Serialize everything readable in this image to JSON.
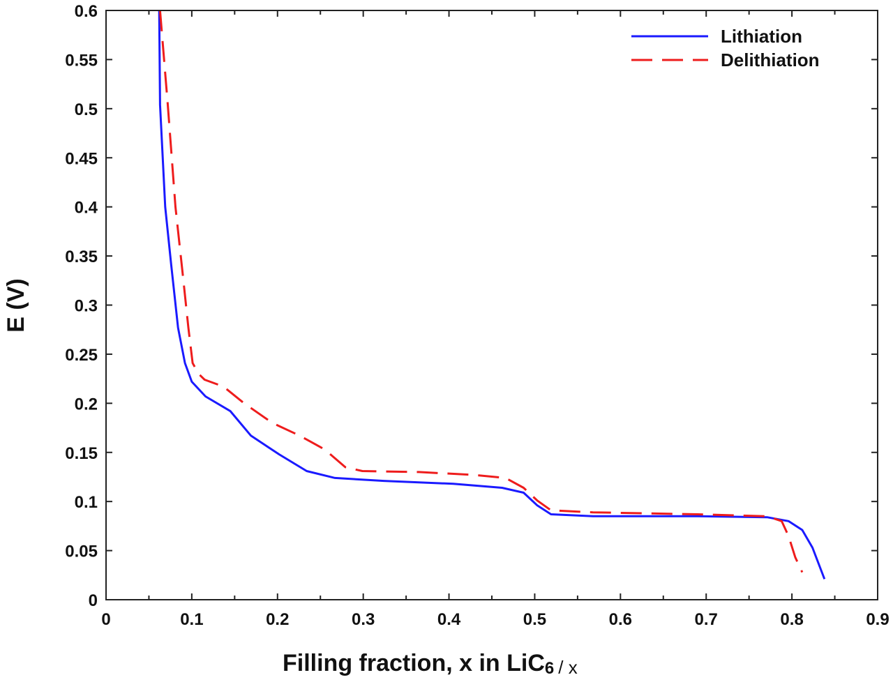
{
  "chart_data": {
    "type": "line",
    "title": "",
    "xlabel": "Filling fraction,  x in LiC",
    "xlabel_sub": "6",
    "xlabel_suffix": "/ x",
    "ylabel": "E (V)",
    "xlim": [
      0,
      0.9
    ],
    "ylim": [
      0,
      0.6
    ],
    "xticks": [
      "0",
      "0.1",
      "0.2",
      "0.3",
      "0.4",
      "0.5",
      "0.6",
      "0.7",
      "0.8",
      "0.9"
    ],
    "yticks": [
      "0",
      "0.05",
      "0.1",
      "0.15",
      "0.2",
      "0.25",
      "0.3",
      "0.35",
      "0.4",
      "0.45",
      "0.5",
      "0.55",
      "0.6"
    ],
    "grid": false,
    "legend_position": "top-right",
    "series": [
      {
        "name": "Lithiation",
        "color": "#1a1aff",
        "style": "solid",
        "points": [
          [
            0.062,
            0.6
          ],
          [
            0.063,
            0.504
          ],
          [
            0.069,
            0.4
          ],
          [
            0.076,
            0.341
          ],
          [
            0.084,
            0.277
          ],
          [
            0.092,
            0.241
          ],
          [
            0.1,
            0.222
          ],
          [
            0.116,
            0.207
          ],
          [
            0.145,
            0.192
          ],
          [
            0.169,
            0.167
          ],
          [
            0.202,
            0.148
          ],
          [
            0.234,
            0.131
          ],
          [
            0.267,
            0.124
          ],
          [
            0.324,
            0.121
          ],
          [
            0.405,
            0.118
          ],
          [
            0.462,
            0.114
          ],
          [
            0.487,
            0.109
          ],
          [
            0.503,
            0.096
          ],
          [
            0.519,
            0.087
          ],
          [
            0.568,
            0.085
          ],
          [
            0.69,
            0.085
          ],
          [
            0.771,
            0.084
          ],
          [
            0.796,
            0.08
          ],
          [
            0.812,
            0.071
          ],
          [
            0.824,
            0.053
          ],
          [
            0.838,
            0.021
          ]
        ]
      },
      {
        "name": "Delithiation",
        "color": "#ee1c1c",
        "style": "dashed",
        "points": [
          [
            0.063,
            0.6
          ],
          [
            0.072,
            0.504
          ],
          [
            0.081,
            0.4
          ],
          [
            0.09,
            0.327
          ],
          [
            0.096,
            0.277
          ],
          [
            0.101,
            0.241
          ],
          [
            0.108,
            0.23
          ],
          [
            0.115,
            0.224
          ],
          [
            0.137,
            0.217
          ],
          [
            0.161,
            0.2
          ],
          [
            0.194,
            0.18
          ],
          [
            0.226,
            0.167
          ],
          [
            0.255,
            0.153
          ],
          [
            0.279,
            0.135
          ],
          [
            0.299,
            0.131
          ],
          [
            0.365,
            0.13
          ],
          [
            0.43,
            0.127
          ],
          [
            0.466,
            0.124
          ],
          [
            0.487,
            0.114
          ],
          [
            0.503,
            0.101
          ],
          [
            0.519,
            0.091
          ],
          [
            0.568,
            0.089
          ],
          [
            0.69,
            0.087
          ],
          [
            0.771,
            0.085
          ],
          [
            0.788,
            0.08
          ],
          [
            0.796,
            0.065
          ],
          [
            0.804,
            0.043
          ],
          [
            0.812,
            0.028
          ]
        ]
      }
    ]
  }
}
